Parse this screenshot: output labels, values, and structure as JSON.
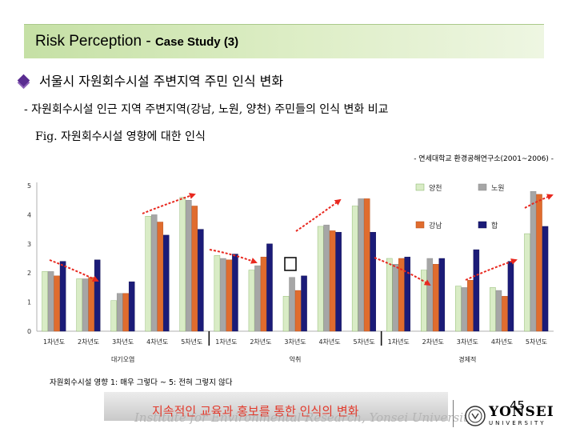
{
  "title": {
    "main": "Risk Perception - ",
    "case": "Case Study (3)"
  },
  "bullet": "서울시 자원회수시설 주변지역 주민 인식 변화",
  "subtitle": "- 자원회수시설 인근 지역 주변지역(강남, 노원, 양천) 주민들의 인식 변화 비교",
  "fig_caption": "Fig. 자원회수시설 영향에 대한 인식",
  "source": "- 연세대학교 환경공해연구소(2001~2006) -",
  "footnote": "자원회수시설 영향  1: 매우 그렇다 ~ 5: 전혀 그렇지 않다",
  "footer": {
    "institute": "Institute for Environmental Research, Yonsei University",
    "message": "지속적인 교육과 홍보를 통한 인식의 변화",
    "page": "45",
    "logo_big": "YONSEI",
    "logo_small": "UNIVERSITY"
  },
  "colors": {
    "yangcheon": "#d9ecc6",
    "nowon": "#a6a6a6",
    "gangnam": "#e06c2e",
    "total": "#1b1b78",
    "arrow": "#e8281f",
    "title_bar": "#c5e0a5",
    "bullet": "#5a2d91"
  },
  "chart_data": {
    "type": "bar",
    "ylim": [
      0,
      5
    ],
    "yticks": [
      "0",
      "1",
      "2",
      "3",
      "4",
      "5"
    ],
    "groups": [
      {
        "label": "대기오염",
        "categories": [
          "1차년도",
          "2차년도",
          "3차년도",
          "4차년도",
          "5차년도"
        ]
      },
      {
        "label": "악취",
        "categories": [
          "1차년도",
          "2차년도",
          "3차년도",
          "4차년도",
          "5차년도"
        ]
      },
      {
        "label": "경제적",
        "categories": [
          "1차년도",
          "2차년도",
          "3차년도",
          "4차년도",
          "5차년도"
        ]
      }
    ],
    "series": [
      {
        "name": "양천",
        "color": "#d9ecc6",
        "values": [
          2.05,
          1.8,
          1.05,
          3.95,
          4.6,
          2.6,
          2.1,
          1.2,
          3.6,
          4.3,
          2.5,
          2.1,
          1.55,
          1.5,
          3.35
        ]
      },
      {
        "name": "노원",
        "color": "#a6a6a6",
        "values": [
          2.05,
          1.8,
          1.3,
          4.0,
          4.5,
          2.5,
          2.25,
          1.85,
          3.65,
          4.55,
          2.3,
          2.5,
          1.5,
          1.4,
          4.8
        ]
      },
      {
        "name": "강남",
        "color": "#e06c2e",
        "values": [
          1.9,
          1.85,
          1.3,
          3.75,
          4.3,
          2.45,
          2.55,
          1.4,
          3.45,
          4.55,
          2.5,
          2.3,
          1.75,
          1.2,
          4.7
        ]
      },
      {
        "name": "합",
        "color": "#1b1b78",
        "values": [
          2.4,
          2.45,
          1.7,
          3.3,
          3.5,
          2.65,
          3.0,
          1.9,
          3.4,
          3.4,
          2.55,
          2.5,
          2.8,
          2.4,
          3.6
        ]
      }
    ],
    "legend": {
      "position": "top-right"
    }
  }
}
